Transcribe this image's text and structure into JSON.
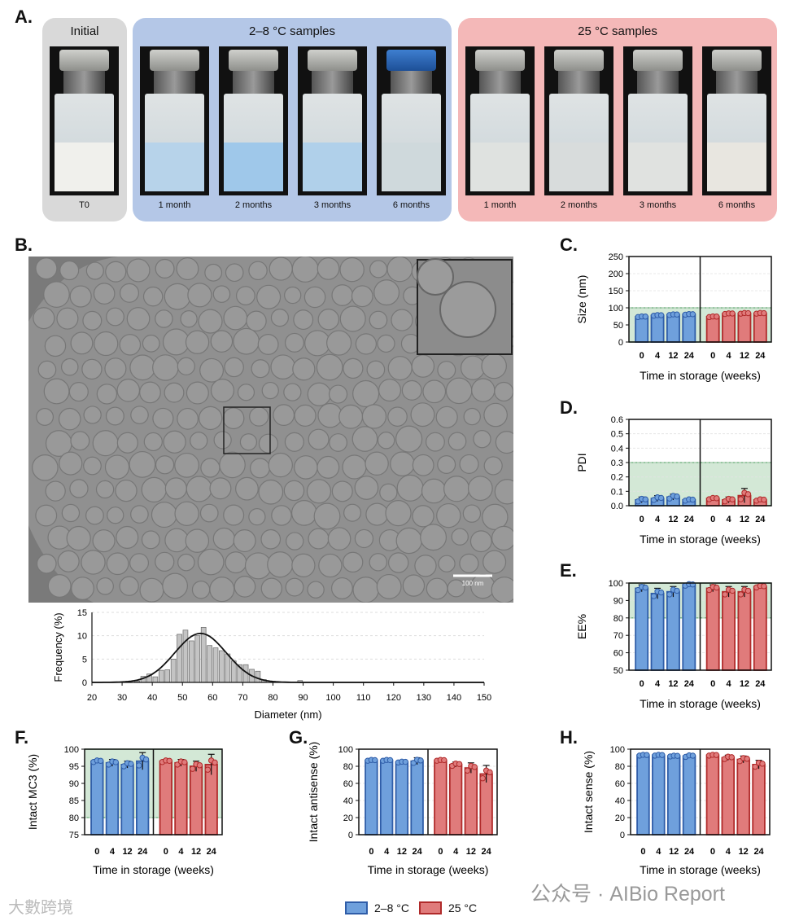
{
  "panel_labels": {
    "a": "A.",
    "b": "B.",
    "c": "C.",
    "d": "D.",
    "e": "E.",
    "f": "F.",
    "g": "G.",
    "h": "H."
  },
  "panel_a": {
    "groups": [
      {
        "title": "Initial",
        "color": "#d9d9d9",
        "vials": [
          {
            "label": "T0",
            "liquid": "#f0f0ec"
          }
        ]
      },
      {
        "title": "2–8 °C samples",
        "color": "#b4c7e7",
        "vials": [
          {
            "label": "1 month",
            "liquid": "#b7d3ea"
          },
          {
            "label": "2 months",
            "liquid": "#9fc8ea"
          },
          {
            "label": "3 months",
            "liquid": "#b0d0ea"
          },
          {
            "label": "6 months",
            "liquid": "#cfd9dc"
          }
        ]
      },
      {
        "title": "25 °C samples",
        "color": "#f4b8b8",
        "vials": [
          {
            "label": "1 month",
            "liquid": "#dfe2e0"
          },
          {
            "label": "2 months",
            "liquid": "#d8dcdc"
          },
          {
            "label": "3 months",
            "liquid": "#e0e2e0"
          },
          {
            "label": "6 months",
            "liquid": "#e8e6e0"
          }
        ]
      }
    ],
    "cap_blue_index": 4
  },
  "panel_b": {
    "scale_bar": "100 nm",
    "histogram": {
      "xlabel": "Diameter (nm)",
      "ylabel": "Frequency (%)",
      "x_ticks": [
        20,
        30,
        40,
        50,
        60,
        70,
        80,
        90,
        100,
        110,
        120,
        130,
        140,
        150
      ],
      "y_ticks": [
        0,
        5,
        10,
        15
      ],
      "xlim": [
        20,
        150
      ],
      "ylim": [
        0,
        15
      ],
      "bin_width": 2,
      "bins": [
        {
          "x": 35,
          "v": 0.3
        },
        {
          "x": 37,
          "v": 1.3
        },
        {
          "x": 39,
          "v": 1.8
        },
        {
          "x": 41,
          "v": 1.2
        },
        {
          "x": 43,
          "v": 2.6
        },
        {
          "x": 45,
          "v": 2.7
        },
        {
          "x": 47,
          "v": 5.0
        },
        {
          "x": 49,
          "v": 10.3
        },
        {
          "x": 51,
          "v": 11.2
        },
        {
          "x": 53,
          "v": 8.9
        },
        {
          "x": 55,
          "v": 10.0
        },
        {
          "x": 57,
          "v": 11.8
        },
        {
          "x": 59,
          "v": 7.9
        },
        {
          "x": 61,
          "v": 7.4
        },
        {
          "x": 63,
          "v": 6.8
        },
        {
          "x": 65,
          "v": 6.1
        },
        {
          "x": 67,
          "v": 4.6
        },
        {
          "x": 69,
          "v": 3.8
        },
        {
          "x": 71,
          "v": 3.8
        },
        {
          "x": 73,
          "v": 2.8
        },
        {
          "x": 75,
          "v": 2.4
        },
        {
          "x": 77,
          "v": 0.6
        },
        {
          "x": 81,
          "v": 0.2
        },
        {
          "x": 89,
          "v": 0.4
        }
      ],
      "fit": {
        "mean": 56,
        "sd": 8.5,
        "peak": 10.5
      }
    }
  },
  "chart_data": [
    {
      "id": "C",
      "type": "bar",
      "ylabel": "Size (nm)",
      "yticks": [
        0,
        50,
        100,
        150,
        200,
        250
      ],
      "ylim": [
        0,
        250
      ],
      "band": [
        0,
        100
      ],
      "categories": [
        "0",
        "4",
        "12",
        "24"
      ],
      "xlabel": "Time in storage (weeks)",
      "series": [
        {
          "name": "2–8 °C",
          "values": [
            74,
            78,
            80,
            81
          ],
          "err": [
            2,
            2,
            2,
            2
          ]
        },
        {
          "name": "25 °C",
          "values": [
            74,
            83,
            84,
            84
          ],
          "err": [
            2,
            2,
            2,
            2
          ]
        }
      ]
    },
    {
      "id": "D",
      "type": "bar",
      "ylabel": "PDI",
      "yticks": [
        "0.0",
        "0.1",
        "0.2",
        "0.3",
        "0.4",
        "0.5",
        "0.6"
      ],
      "ylim": [
        0,
        0.6
      ],
      "band": [
        0,
        0.3
      ],
      "categories": [
        "0",
        "4",
        "12",
        "24"
      ],
      "xlabel": "Time in storage (weeks)",
      "series": [
        {
          "name": "2–8 °C",
          "values": [
            0.04,
            0.05,
            0.06,
            0.04
          ],
          "err": [
            0.02,
            0.02,
            0.02,
            0.01
          ]
        },
        {
          "name": "25 °C",
          "values": [
            0.05,
            0.04,
            0.07,
            0.04
          ],
          "err": [
            0.01,
            0.02,
            0.05,
            0.01
          ]
        }
      ]
    },
    {
      "id": "E",
      "type": "bar",
      "ylabel": "EE%",
      "yticks": [
        50,
        60,
        70,
        80,
        90,
        100
      ],
      "ylim": [
        50,
        100
      ],
      "band": [
        80,
        100
      ],
      "categories": [
        "0",
        "4",
        "12",
        "24"
      ],
      "xlabel": "Time in storage (weeks)",
      "series": [
        {
          "name": "2–8 °C",
          "values": [
            97,
            94,
            95,
            99
          ],
          "err": [
            2,
            3,
            3,
            1
          ]
        },
        {
          "name": "25 °C",
          "values": [
            97,
            95,
            95,
            98
          ],
          "err": [
            2,
            3,
            3,
            1
          ]
        }
      ]
    },
    {
      "id": "F",
      "type": "bar",
      "ylabel": "Intact MC3 (%)",
      "yticks": [
        75,
        80,
        85,
        90,
        95,
        100
      ],
      "ylim": [
        75,
        100
      ],
      "band": [
        80,
        100
      ],
      "categories": [
        "0",
        "4",
        "12",
        "24"
      ],
      "xlabel": "Time in storage (weeks)",
      "series": [
        {
          "name": "2–8 °C",
          "values": [
            96.5,
            96,
            95.5,
            96.5
          ],
          "err": [
            0.5,
            1,
            1,
            2.5
          ]
        },
        {
          "name": "25 °C",
          "values": [
            96.5,
            96,
            95,
            95.5
          ],
          "err": [
            0.5,
            1,
            1.5,
            3
          ]
        }
      ]
    },
    {
      "id": "G",
      "type": "bar",
      "ylabel": "Intact antisense (%)",
      "yticks": [
        0,
        20,
        40,
        60,
        80,
        100
      ],
      "ylim": [
        0,
        100
      ],
      "band": null,
      "categories": [
        "0",
        "4",
        "12",
        "24"
      ],
      "xlabel": "Time in storage (weeks)",
      "series": [
        {
          "name": "2–8 °C",
          "values": [
            87,
            87,
            85,
            86
          ],
          "err": [
            1,
            1,
            1,
            4
          ]
        },
        {
          "name": "25 °C",
          "values": [
            87,
            82,
            78,
            71
          ],
          "err": [
            1,
            3,
            6,
            10
          ]
        }
      ]
    },
    {
      "id": "H",
      "type": "bar",
      "ylabel": "Intact sense (%)",
      "yticks": [
        0,
        20,
        40,
        60,
        80,
        100
      ],
      "ylim": [
        0,
        100
      ],
      "band": null,
      "categories": [
        "0",
        "4",
        "12",
        "24"
      ],
      "xlabel": "Time in storage (weeks)",
      "series": [
        {
          "name": "2–8 °C",
          "values": [
            93,
            93,
            92,
            92
          ],
          "err": [
            1,
            1,
            1,
            2
          ]
        },
        {
          "name": "25 °C",
          "values": [
            93,
            90,
            88,
            82
          ],
          "err": [
            1,
            3,
            4,
            5
          ]
        }
      ]
    }
  ],
  "legend": [
    {
      "label": "2–8 °C",
      "fill": "#6fa0dc",
      "stroke": "#2f5da8"
    },
    {
      "label": "25 °C",
      "fill": "#e07b7b",
      "stroke": "#b02a2a"
    }
  ],
  "colors": {
    "blue_fill": "#6fa0dc",
    "blue_stroke": "#2f5da8",
    "red_fill": "#e07b7b",
    "red_stroke": "#b02a2a",
    "band": "#d3e8d6",
    "band_line": "#7db98a"
  },
  "watermarks": {
    "left": "大數跨境",
    "right": "公众号 · AIBio Report"
  }
}
